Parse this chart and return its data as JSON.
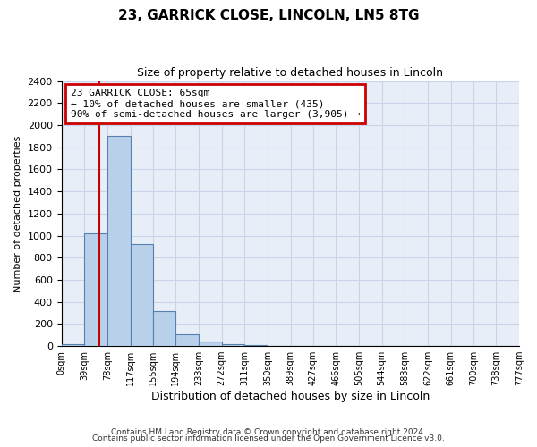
{
  "title": "23, GARRICK CLOSE, LINCOLN, LN5 8TG",
  "subtitle": "Size of property relative to detached houses in Lincoln",
  "xlabel": "Distribution of detached houses by size in Lincoln",
  "ylabel": "Number of detached properties",
  "bin_edges": [
    0,
    39,
    78,
    117,
    155,
    194,
    233,
    272,
    311,
    350,
    389,
    427,
    466,
    505,
    544,
    583,
    622,
    661,
    700,
    738,
    777
  ],
  "bin_labels": [
    "0sqm",
    "39sqm",
    "78sqm",
    "117sqm",
    "155sqm",
    "194sqm",
    "233sqm",
    "272sqm",
    "311sqm",
    "350sqm",
    "389sqm",
    "427sqm",
    "466sqm",
    "505sqm",
    "544sqm",
    "583sqm",
    "622sqm",
    "661sqm",
    "700sqm",
    "738sqm",
    "777sqm"
  ],
  "bar_values": [
    20,
    1020,
    1900,
    920,
    320,
    105,
    45,
    20,
    10,
    0,
    0,
    0,
    0,
    0,
    0,
    0,
    0,
    0,
    0,
    0
  ],
  "bar_color": "#b8d0ea",
  "bar_edge_color": "#5580b0",
  "property_line_x": 65,
  "property_line_color": "#cc0000",
  "ylim": [
    0,
    2400
  ],
  "yticks": [
    0,
    200,
    400,
    600,
    800,
    1000,
    1200,
    1400,
    1600,
    1800,
    2000,
    2200,
    2400
  ],
  "annotation_title": "23 GARRICK CLOSE: 65sqm",
  "annotation_line1": "← 10% of detached houses are smaller (435)",
  "annotation_line2": "90% of semi-detached houses are larger (3,905) →",
  "annotation_box_color": "#cc0000",
  "footer_line1": "Contains HM Land Registry data © Crown copyright and database right 2024.",
  "footer_line2": "Contains public sector information licensed under the Open Government Licence v3.0.",
  "fig_background_color": "#ffffff",
  "plot_background": "#e8eef8",
  "grid_color": "#c8d4e8"
}
